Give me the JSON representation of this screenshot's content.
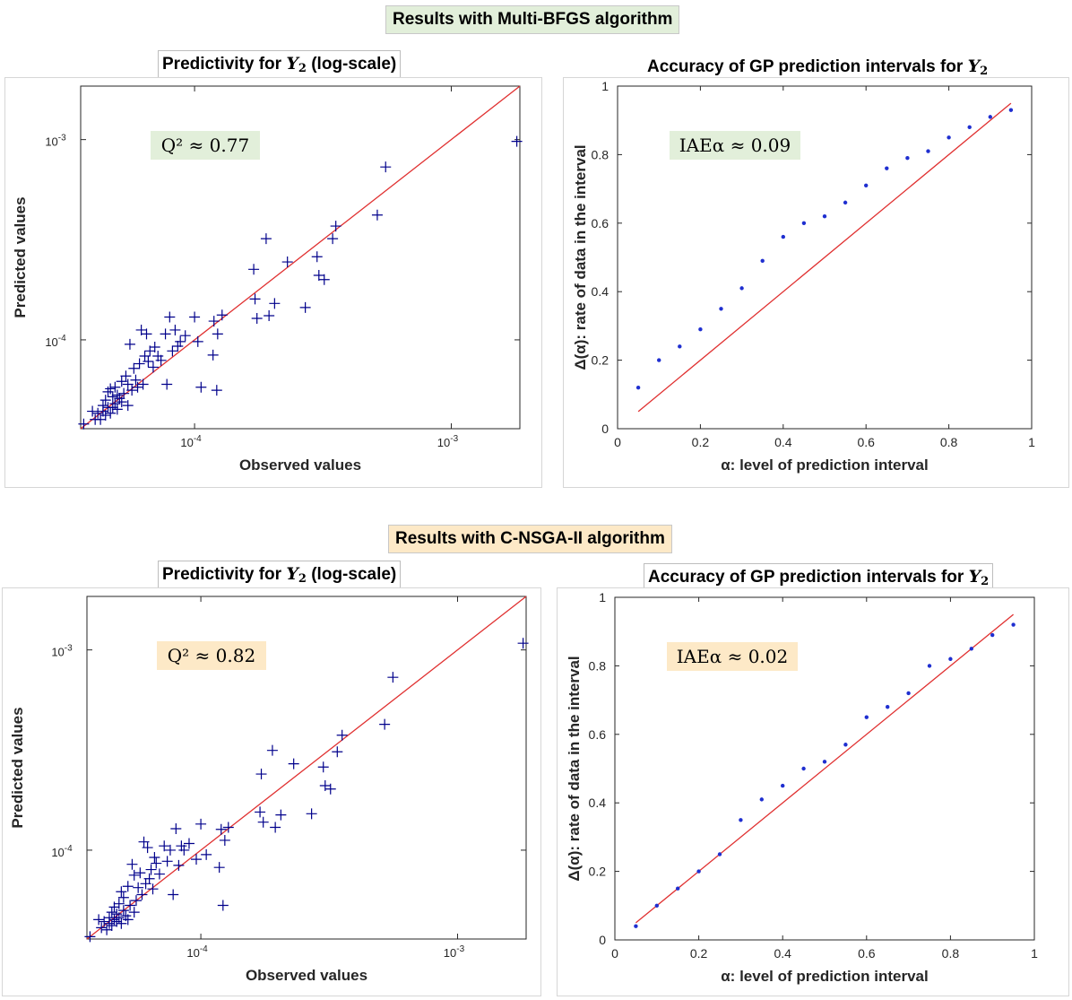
{
  "sections": [
    {
      "banner": "Results with Multi-BFGS algorithm",
      "banner_color": "#e2efda",
      "left_title_prefix": "Predictivity for",
      "left_title_symbol": "Y",
      "left_title_subscript": "2",
      "left_title_suffix": "(log-scale)",
      "right_title_prefix": "Accuracy of GP prediction intervals for",
      "right_title_symbol": "Y",
      "right_title_subscript": "2"
    },
    {
      "banner": "Results with C-NSGA-II algorithm",
      "banner_color": "#fde9c7",
      "left_title_prefix": "Predictivity for",
      "left_title_symbol": "Y",
      "left_title_subscript": "2",
      "left_title_suffix": "(log-scale)",
      "right_title_prefix": "Accuracy of GP prediction intervals for",
      "right_title_symbol": "Y",
      "right_title_subscript": "2"
    }
  ],
  "chart_data": [
    {
      "type": "scatter",
      "scale": "log",
      "xlabel": "Observed values",
      "ylabel": "Predicted values",
      "xlim": [
        3.6e-05,
        0.00185
      ],
      "ylim": [
        3.6e-05,
        0.00185
      ],
      "x_ticks": [
        {
          "value": 0.0001,
          "base": "10",
          "exp": "-4"
        },
        {
          "value": 0.001,
          "base": "10",
          "exp": "-3"
        }
      ],
      "y_ticks": [
        {
          "value": 0.0001,
          "base": "10",
          "exp": "-4"
        },
        {
          "value": 0.001,
          "base": "10",
          "exp": "-3"
        }
      ],
      "marker": "+",
      "marker_color": "#00008b",
      "line_color": "#e03030",
      "annotation": "Q² ≈ 0.77",
      "annotation_bg": "#e2efda",
      "points": [
        [
          3.7e-05,
          3.8e-05
        ],
        [
          4e-05,
          4.4e-05
        ],
        [
          4.1e-05,
          4e-05
        ],
        [
          4.2e-05,
          4.3e-05
        ],
        [
          4.3e-05,
          4e-05
        ],
        [
          4.4e-05,
          4.7e-05
        ],
        [
          4.4e-05,
          4.4e-05
        ],
        [
          4.5e-05,
          4.2e-05
        ],
        [
          4.5e-05,
          5e-05
        ],
        [
          4.6e-05,
          4.6e-05
        ],
        [
          4.6e-05,
          5.5e-05
        ],
        [
          4.7e-05,
          4.3e-05
        ],
        [
          4.7e-05,
          5.7e-05
        ],
        [
          4.8e-05,
          5.2e-05
        ],
        [
          4.8e-05,
          4.6e-05
        ],
        [
          4.9e-05,
          5.8e-05
        ],
        [
          4.9e-05,
          4.8e-05
        ],
        [
          5e-05,
          5.3e-05
        ],
        [
          5e-05,
          4.5e-05
        ],
        [
          5.1e-05,
          5.1e-05
        ],
        [
          5.2e-05,
          6.2e-05
        ],
        [
          5.2e-05,
          4.9e-05
        ],
        [
          5.3e-05,
          5.4e-05
        ],
        [
          5.4e-05,
          6.6e-05
        ],
        [
          5.5e-05,
          4.7e-05
        ],
        [
          5.5e-05,
          6e-05
        ],
        [
          5.6e-05,
          9.5e-05
        ],
        [
          5.7e-05,
          5.6e-05
        ],
        [
          5.8e-05,
          7.2e-05
        ],
        [
          5.9e-05,
          6.3e-05
        ],
        [
          6e-05,
          5.8e-05
        ],
        [
          6.1e-05,
          7.6e-05
        ],
        [
          6.2e-05,
          0.000112
        ],
        [
          6.3e-05,
          6e-05
        ],
        [
          6.4e-05,
          8.3e-05
        ],
        [
          6.5e-05,
          0.000107
        ],
        [
          6.6e-05,
          7.8e-05
        ],
        [
          6.7e-05,
          8.8e-05
        ],
        [
          6.9e-05,
          7.3e-05
        ],
        [
          7e-05,
          9.2e-05
        ],
        [
          7.2e-05,
          8.3e-05
        ],
        [
          7.4e-05,
          7.9e-05
        ],
        [
          7.7e-05,
          0.000107
        ],
        [
          7.8e-05,
          6e-05
        ],
        [
          8e-05,
          0.00013
        ],
        [
          8.2e-05,
          8.8e-05
        ],
        [
          8.4e-05,
          0.000112
        ],
        [
          8.6e-05,
          9.3e-05
        ],
        [
          8.8e-05,
          9.8e-05
        ],
        [
          9.2e-05,
          0.000105
        ],
        [
          0.0001,
          0.00013
        ],
        [
          0.000103,
          9.8e-05
        ],
        [
          0.000106,
          5.8e-05
        ],
        [
          0.000118,
          8.4e-05
        ],
        [
          0.000119,
          0.000124
        ],
        [
          0.000122,
          5.6e-05
        ],
        [
          0.000123,
          0.000107
        ],
        [
          0.000128,
          0.000133
        ],
        [
          0.00017,
          0.000225
        ],
        [
          0.000172,
          0.00016
        ],
        [
          0.000175,
          0.000128
        ],
        [
          0.00019,
          0.00032
        ],
        [
          0.000195,
          0.000132
        ],
        [
          0.000205,
          0.000152
        ],
        [
          0.00023,
          0.000245
        ],
        [
          0.00027,
          0.000145
        ],
        [
          0.0003,
          0.00026
        ],
        [
          0.000305,
          0.00021
        ],
        [
          0.00032,
          0.0002
        ],
        [
          0.000345,
          0.00032
        ],
        [
          0.000355,
          0.00037
        ],
        [
          0.000515,
          0.00042
        ],
        [
          0.000555,
          0.00073
        ],
        [
          0.0018,
          0.00098
        ]
      ]
    },
    {
      "type": "scatter",
      "xlabel": "α: level of prediction interval",
      "ylabel": "Δ(α): rate of data in the interval",
      "xlim": [
        0,
        1
      ],
      "ylim": [
        0,
        1
      ],
      "x_ticks": [
        "0",
        "0.2",
        "0.4",
        "0.6",
        "0.8",
        "1"
      ],
      "y_ticks": [
        "0",
        "0.2",
        "0.4",
        "0.6",
        "0.8",
        "1"
      ],
      "marker_color": "#1f2fd0",
      "line_color": "#e03030",
      "reference_line": [
        [
          0.05,
          0.05
        ],
        [
          0.95,
          0.95
        ]
      ],
      "annotation": "IAEα ≈ 0.09",
      "annotation_bg": "#e2efda",
      "x": [
        0.05,
        0.1,
        0.15,
        0.2,
        0.25,
        0.3,
        0.35,
        0.4,
        0.45,
        0.5,
        0.55,
        0.6,
        0.65,
        0.7,
        0.75,
        0.8,
        0.85,
        0.9,
        0.95
      ],
      "y": [
        0.12,
        0.2,
        0.24,
        0.29,
        0.35,
        0.41,
        0.49,
        0.56,
        0.6,
        0.62,
        0.66,
        0.71,
        0.76,
        0.79,
        0.81,
        0.85,
        0.88,
        0.91,
        0.93
      ]
    },
    {
      "type": "scatter",
      "scale": "log",
      "xlabel": "Observed values",
      "ylabel": "Predicted values",
      "xlim": [
        3.6e-05,
        0.00185
      ],
      "ylim": [
        3.6e-05,
        0.00185
      ],
      "x_ticks": [
        {
          "value": 0.0001,
          "base": "10",
          "exp": "-4"
        },
        {
          "value": 0.001,
          "base": "10",
          "exp": "-3"
        }
      ],
      "y_ticks": [
        {
          "value": 0.0001,
          "base": "10",
          "exp": "-4"
        },
        {
          "value": 0.001,
          "base": "10",
          "exp": "-3"
        }
      ],
      "marker": "+",
      "marker_color": "#00008b",
      "line_color": "#e03030",
      "annotation": "Q² ≈ 0.82",
      "annotation_bg": "#fde9c7",
      "points": [
        [
          3.7e-05,
          3.7e-05
        ],
        [
          4e-05,
          4.5e-05
        ],
        [
          4.1e-05,
          4.1e-05
        ],
        [
          4.2e-05,
          4.4e-05
        ],
        [
          4.3e-05,
          4e-05
        ],
        [
          4.4e-05,
          4.6e-05
        ],
        [
          4.4e-05,
          4.3e-05
        ],
        [
          4.5e-05,
          4.9e-05
        ],
        [
          4.5e-05,
          4.2e-05
        ],
        [
          4.6e-05,
          4.5e-05
        ],
        [
          4.6e-05,
          5.2e-05
        ],
        [
          4.7e-05,
          4.4e-05
        ],
        [
          4.7e-05,
          4.8e-05
        ],
        [
          4.8e-05,
          5.4e-05
        ],
        [
          4.8e-05,
          4.6e-05
        ],
        [
          4.9e-05,
          6.2e-05
        ],
        [
          4.9e-05,
          4.3e-05
        ],
        [
          5e-05,
          5e-05
        ],
        [
          5e-05,
          5.8e-05
        ],
        [
          5.1e-05,
          4.7e-05
        ],
        [
          5.2e-05,
          6.6e-05
        ],
        [
          5.2e-05,
          4.5e-05
        ],
        [
          5.3e-05,
          5.3e-05
        ],
        [
          5.4e-05,
          8.5e-05
        ],
        [
          5.5e-05,
          4.9e-05
        ],
        [
          5.5e-05,
          7.5e-05
        ],
        [
          5.6e-05,
          5.6e-05
        ],
        [
          5.7e-05,
          6.5e-05
        ],
        [
          5.8e-05,
          7.7e-05
        ],
        [
          5.9e-05,
          6e-05
        ],
        [
          6e-05,
          0.00011
        ],
        [
          6.1e-05,
          6.8e-05
        ],
        [
          6.2e-05,
          0.000103
        ],
        [
          6.3e-05,
          7.2e-05
        ],
        [
          6.4e-05,
          8e-05
        ],
        [
          6.5e-05,
          6.4e-05
        ],
        [
          6.6e-05,
          9.2e-05
        ],
        [
          6.7e-05,
          8.6e-05
        ],
        [
          6.9e-05,
          7.6e-05
        ],
        [
          7.2e-05,
          0.000105
        ],
        [
          7.4e-05,
          8.8e-05
        ],
        [
          7.6e-05,
          0.0001
        ],
        [
          7.8e-05,
          6e-05
        ],
        [
          8e-05,
          0.000128
        ],
        [
          8.2e-05,
          8.4e-05
        ],
        [
          8.4e-05,
          0.000105
        ],
        [
          8.6e-05,
          0.0001
        ],
        [
          9e-05,
          0.000108
        ],
        [
          9.6e-05,
          9e-05
        ],
        [
          0.0001,
          0.000135
        ],
        [
          0.000105,
          9.5e-05
        ],
        [
          0.000118,
          8.2e-05
        ],
        [
          0.00012,
          0.000127
        ],
        [
          0.000122,
          5.3e-05
        ],
        [
          0.000124,
          0.000112
        ],
        [
          0.000128,
          0.00013
        ],
        [
          0.00017,
          0.000155
        ],
        [
          0.000172,
          0.00024
        ],
        [
          0.000175,
          0.000138
        ],
        [
          0.00019,
          0.000315
        ],
        [
          0.000195,
          0.00013
        ],
        [
          0.000205,
          0.00015
        ],
        [
          0.00023,
          0.00027
        ],
        [
          0.00027,
          0.000152
        ],
        [
          0.0003,
          0.00026
        ],
        [
          0.000305,
          0.00021
        ],
        [
          0.00032,
          0.000202
        ],
        [
          0.00034,
          0.00031
        ],
        [
          0.000355,
          0.000375
        ],
        [
          0.00052,
          0.000425
        ],
        [
          0.00056,
          0.00073
        ],
        [
          0.0018,
          0.00108
        ]
      ]
    },
    {
      "type": "scatter",
      "xlabel": "α: level of prediction interval",
      "ylabel": "Δ(α): rate of data in the interval",
      "xlim": [
        0,
        1
      ],
      "ylim": [
        0,
        1
      ],
      "x_ticks": [
        "0",
        "0.2",
        "0.4",
        "0.6",
        "0.8",
        "1"
      ],
      "y_ticks": [
        "0",
        "0.2",
        "0.4",
        "0.6",
        "0.8",
        "1"
      ],
      "marker_color": "#1f2fd0",
      "line_color": "#e03030",
      "reference_line": [
        [
          0.05,
          0.05
        ],
        [
          0.95,
          0.95
        ]
      ],
      "annotation": "IAEα ≈ 0.02",
      "annotation_bg": "#fde9c7",
      "x": [
        0.05,
        0.1,
        0.15,
        0.2,
        0.25,
        0.3,
        0.35,
        0.4,
        0.45,
        0.5,
        0.55,
        0.6,
        0.65,
        0.7,
        0.75,
        0.8,
        0.85,
        0.9,
        0.95
      ],
      "y": [
        0.04,
        0.1,
        0.15,
        0.2,
        0.25,
        0.35,
        0.41,
        0.45,
        0.5,
        0.52,
        0.57,
        0.65,
        0.68,
        0.72,
        0.8,
        0.82,
        0.85,
        0.89,
        0.92
      ]
    }
  ]
}
